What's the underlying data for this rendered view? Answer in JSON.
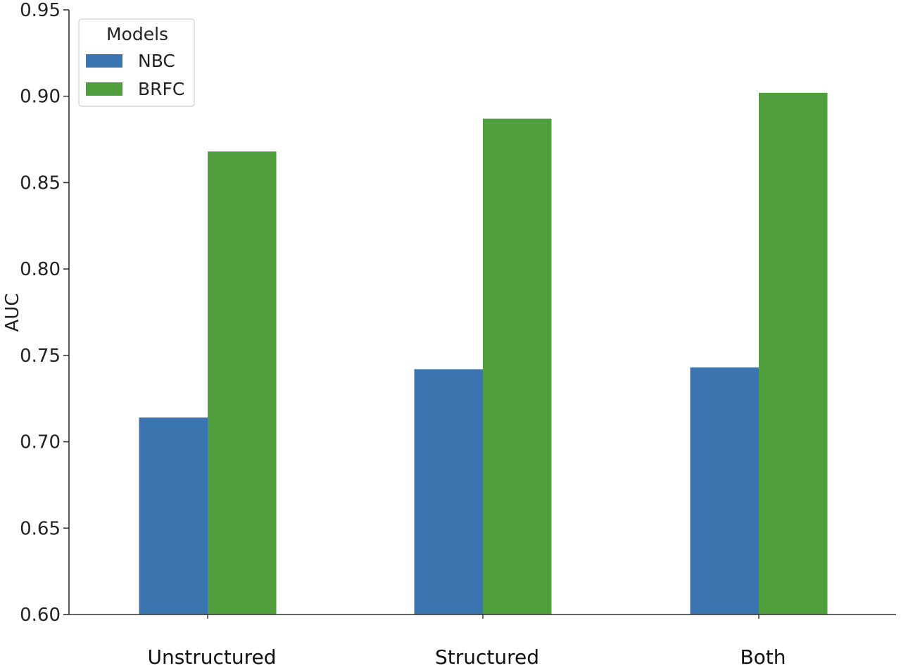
{
  "chart_data": {
    "type": "bar",
    "categories": [
      "Unstructured",
      "Structured",
      "Both"
    ],
    "series": [
      {
        "name": "NBC",
        "values": [
          0.714,
          0.742,
          0.743
        ],
        "color": "#3b75af"
      },
      {
        "name": "BRFC",
        "values": [
          0.868,
          0.887,
          0.902
        ],
        "color": "#519e3e"
      }
    ],
    "title": "",
    "xlabel": "",
    "ylabel": "AUC",
    "ylim": [
      0.6,
      0.95
    ],
    "yticks": [
      0.6,
      0.65,
      0.7,
      0.75,
      0.8,
      0.85,
      0.9,
      0.95
    ],
    "ytick_labels": [
      "0.60",
      "0.65",
      "0.70",
      "0.75",
      "0.80",
      "0.85",
      "0.90",
      "0.95"
    ],
    "legend": {
      "title": "Models",
      "position": "top-left"
    },
    "grid": false
  }
}
